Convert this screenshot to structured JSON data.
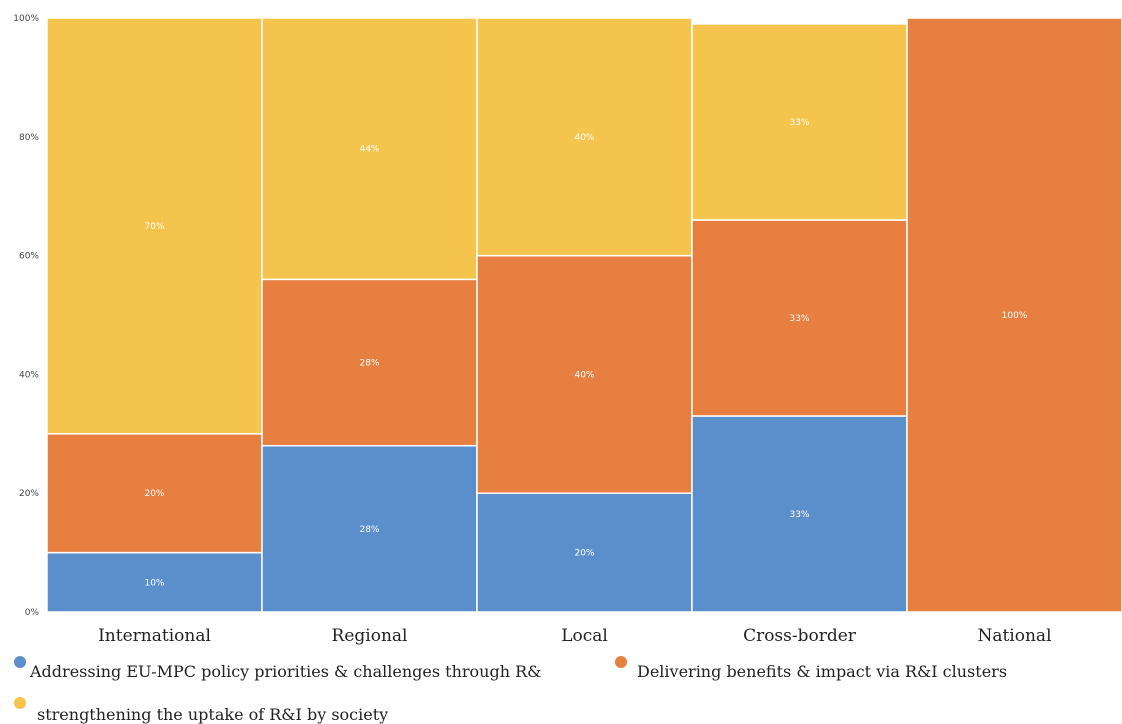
{
  "chart_data": {
    "type": "bar",
    "stacked": true,
    "normalized": true,
    "categories": [
      "International",
      "Regional",
      "Local",
      "Cross-border",
      "National"
    ],
    "category_shares": [
      0.2,
      0.2,
      0.2,
      0.2,
      0.2
    ],
    "series": [
      {
        "name": "Addressing EU-MPC policy priorities & challenges through R&",
        "values": [
          10,
          28,
          20,
          33,
          0
        ],
        "labels": [
          "10%",
          "28%",
          "20%",
          "33%",
          ""
        ],
        "color": "#5a8fcc"
      },
      {
        "name": "Delivering benefits & impact via R&I clusters",
        "values": [
          20,
          28,
          40,
          33,
          100
        ],
        "labels": [
          "20%",
          "28%",
          "40%",
          "33%",
          "100%"
        ],
        "color": "#e67f3f"
      },
      {
        "name": "strengthening the uptake of R&I by society",
        "values": [
          70,
          44,
          40,
          33,
          0
        ],
        "labels": [
          "70%",
          "44%",
          "40%",
          "33%",
          ""
        ],
        "color": "#f5c44c"
      }
    ],
    "y_ticks": [
      "0%",
      "20%",
      "40%",
      "60%",
      "80%",
      "100%"
    ],
    "ylim": [
      0,
      100
    ],
    "legend_position": "bottom",
    "grid": false
  }
}
